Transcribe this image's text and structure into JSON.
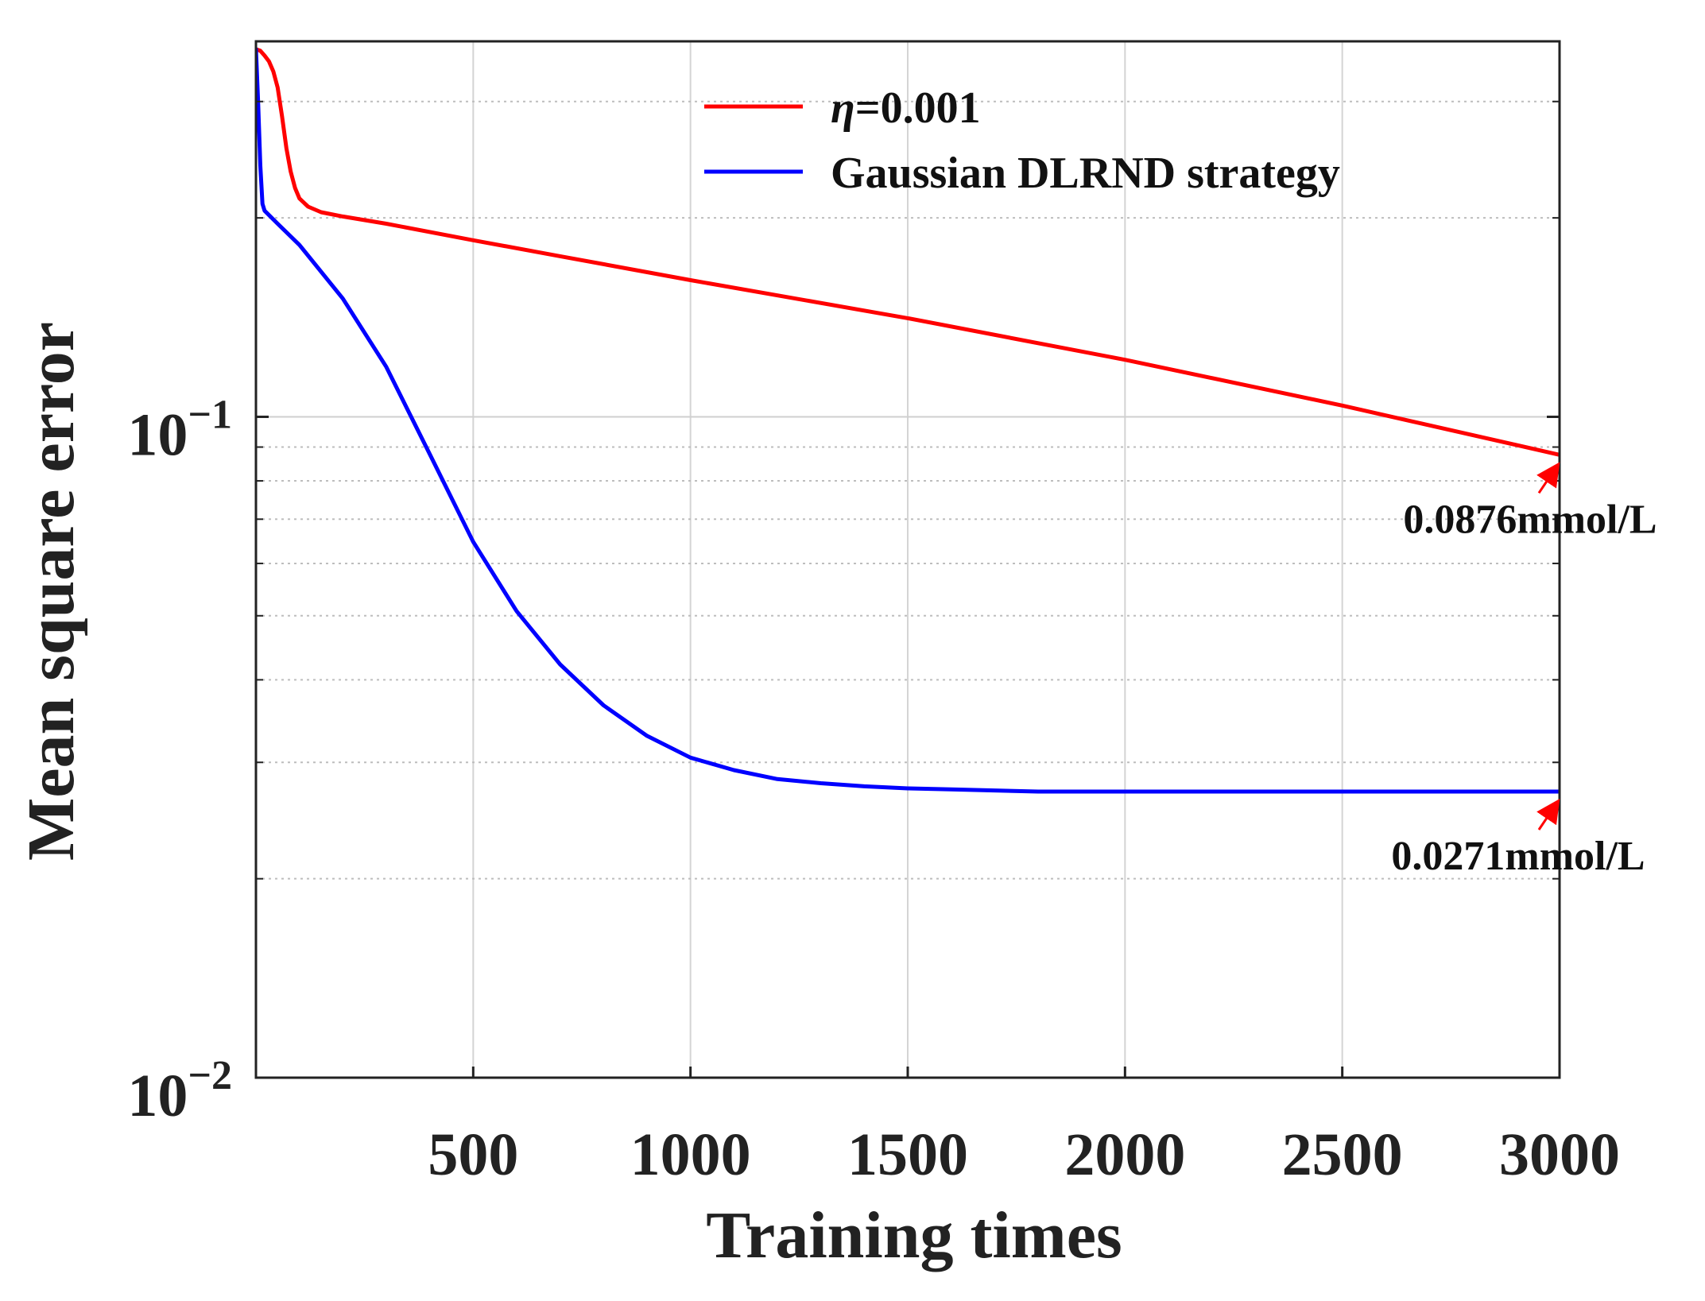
{
  "chart_data": {
    "type": "line",
    "title": "",
    "xlabel": "Training times",
    "ylabel": "Mean square error",
    "x_scale": "linear",
    "y_scale": "log",
    "xlim": [
      0,
      3000
    ],
    "ylim": [
      0.01,
      0.37
    ],
    "x_ticks": [
      500,
      1000,
      1500,
      2000,
      2500,
      3000
    ],
    "x_tick_labels": [
      "500",
      "1000",
      "1500",
      "2000",
      "2500",
      "3000"
    ],
    "y_ticks": [
      {
        "value": 0.1,
        "base": "10",
        "exp": "−1"
      },
      {
        "value": 0.01,
        "base": "10",
        "exp": "−2"
      }
    ],
    "grid": true,
    "legend_position": "top-center",
    "colors": {
      "series_1": "#ff0000",
      "series_2": "#0000ff",
      "annotation": "#ff0000"
    },
    "series": [
      {
        "name": "η=0.001",
        "name_italic": "η",
        "name_rest": "=0.001",
        "color": "#ff0000",
        "x": [
          0,
          10,
          20,
          30,
          40,
          50,
          60,
          70,
          80,
          90,
          100,
          120,
          150,
          200,
          300,
          500,
          700,
          1000,
          1500,
          2000,
          2500,
          3000
        ],
        "y": [
          0.36,
          0.358,
          0.352,
          0.345,
          0.333,
          0.315,
          0.285,
          0.255,
          0.235,
          0.222,
          0.214,
          0.208,
          0.204,
          0.201,
          0.196,
          0.185,
          0.175,
          0.161,
          0.141,
          0.122,
          0.104,
          0.0876
        ]
      },
      {
        "name": "Gaussian DLRND strategy",
        "color": "#0000ff",
        "x": [
          0,
          5,
          10,
          15,
          20,
          50,
          100,
          200,
          300,
          400,
          500,
          600,
          700,
          800,
          900,
          1000,
          1100,
          1200,
          1300,
          1400,
          1500,
          1600,
          1700,
          1800,
          2000,
          2500,
          3000
        ],
        "y": [
          0.36,
          0.3,
          0.24,
          0.21,
          0.205,
          0.196,
          0.182,
          0.151,
          0.119,
          0.0878,
          0.0647,
          0.0508,
          0.0422,
          0.0366,
          0.0329,
          0.0305,
          0.0292,
          0.0283,
          0.0279,
          0.0276,
          0.0274,
          0.0273,
          0.0272,
          0.0271,
          0.0271,
          0.0271,
          0.0271
        ]
      }
    ],
    "annotations": [
      {
        "text": "0.0876mmol/L",
        "x": 3000,
        "y": 0.0876
      },
      {
        "text": "0.0271mmol/L",
        "x": 3000,
        "y": 0.0271
      }
    ]
  }
}
